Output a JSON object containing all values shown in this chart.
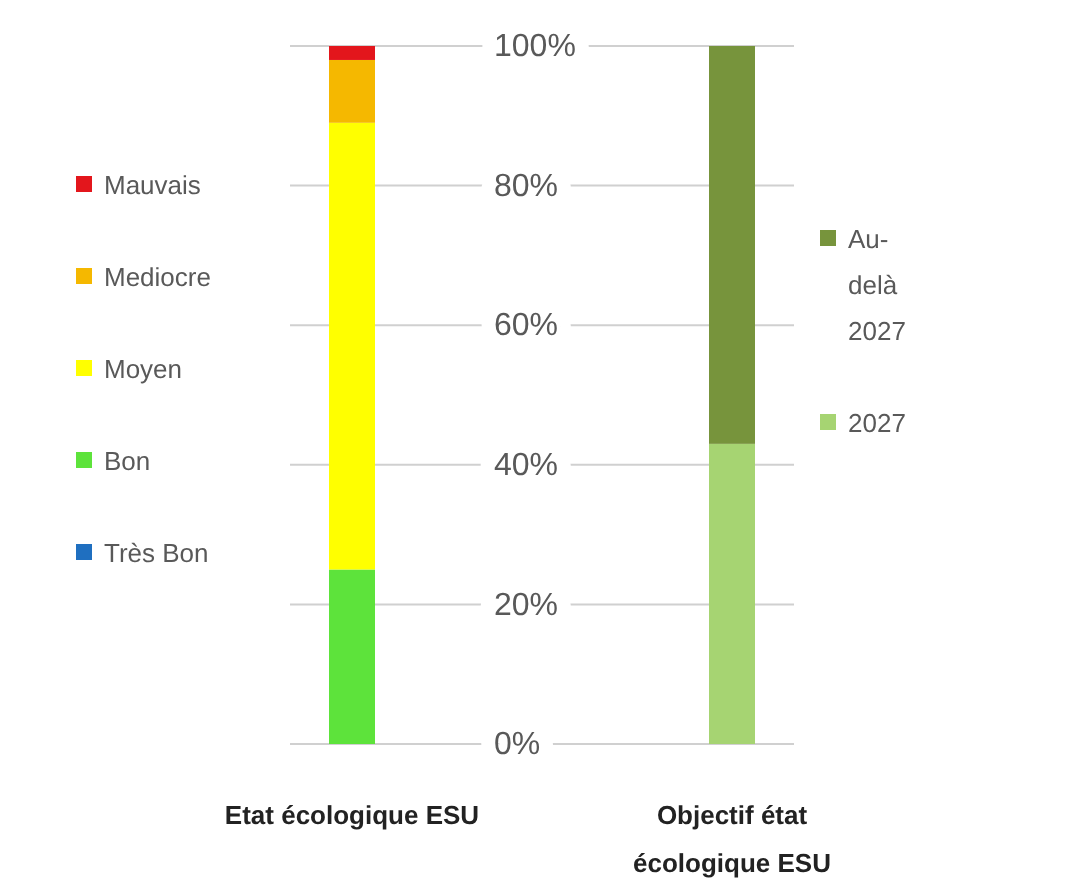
{
  "chart_data": {
    "type": "bar",
    "stacked": true,
    "categories": [
      "Etat écologique ESU",
      "Objectif état écologique ESU"
    ],
    "series": [
      {
        "name": "Très Bon",
        "color": "#1f6fc0",
        "values": [
          0,
          null
        ]
      },
      {
        "name": "Bon",
        "color": "#5de33b",
        "values": [
          25,
          null
        ]
      },
      {
        "name": "Moyen",
        "color": "#ffff00",
        "values": [
          64,
          null
        ]
      },
      {
        "name": "Mediocre",
        "color": "#f5b800",
        "values": [
          9,
          null
        ]
      },
      {
        "name": "Mauvais",
        "color": "#e3161c",
        "values": [
          2,
          null
        ]
      },
      {
        "name": "2027",
        "color": "#a6d472",
        "values": [
          null,
          43
        ]
      },
      {
        "name": "Au-delà 2027",
        "color": "#77943c",
        "values": [
          null,
          57
        ]
      }
    ],
    "ylim": [
      0,
      100
    ],
    "yticks": [
      {
        "value": 0,
        "label": "0%"
      },
      {
        "value": 20,
        "label": "20%"
      },
      {
        "value": 40,
        "label": "40%"
      },
      {
        "value": 60,
        "label": "60%"
      },
      {
        "value": 80,
        "label": "80%"
      },
      {
        "value": 100,
        "label": "100%"
      }
    ],
    "grid": "y",
    "legend": "left"
  }
}
